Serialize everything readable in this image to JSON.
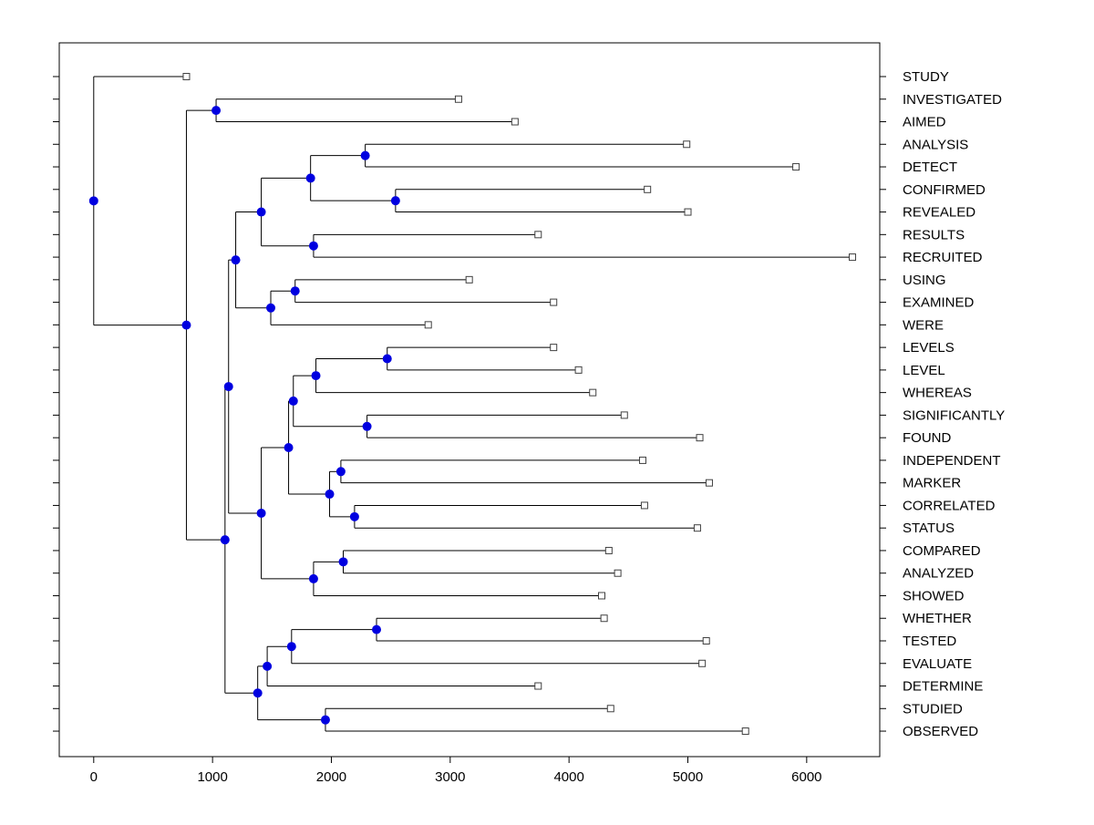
{
  "chart_data": {
    "type": "dendrogram",
    "orientation": "left-to-right",
    "title": "",
    "xlabel": "",
    "ylabel": "",
    "grid": false,
    "legend": null,
    "xlim": [
      -290,
      6615
    ],
    "x_tick_values": [
      0,
      1000,
      2000,
      3000,
      4000,
      5000,
      6000
    ],
    "x_tick_labels": [
      "0",
      "1000",
      "2000",
      "3000",
      "4000",
      "5000",
      "6000"
    ],
    "leaf_labels_side": "right",
    "leaves": [
      {
        "label": "STUDY",
        "x": 780
      },
      {
        "label": "INVESTIGATED",
        "x": 3070
      },
      {
        "label": "AIMED",
        "x": 3545
      },
      {
        "label": "ANALYSIS",
        "x": 4990
      },
      {
        "label": "DETECT",
        "x": 5910
      },
      {
        "label": "CONFIRMED",
        "x": 4660
      },
      {
        "label": "REVEALED",
        "x": 5000
      },
      {
        "label": "RESULTS",
        "x": 3740
      },
      {
        "label": "RECRUITED",
        "x": 6385
      },
      {
        "label": "USING",
        "x": 3160
      },
      {
        "label": "EXAMINED",
        "x": 3870
      },
      {
        "label": "WERE",
        "x": 2815
      },
      {
        "label": "LEVELS",
        "x": 3870
      },
      {
        "label": "LEVEL",
        "x": 4080
      },
      {
        "label": "WHEREAS",
        "x": 4200
      },
      {
        "label": "SIGNIFICANTLY",
        "x": 4465
      },
      {
        "label": "FOUND",
        "x": 5100
      },
      {
        "label": "INDEPENDENT",
        "x": 4620
      },
      {
        "label": "MARKER",
        "x": 5180
      },
      {
        "label": "CORRELATED",
        "x": 4635
      },
      {
        "label": "STATUS",
        "x": 5080
      },
      {
        "label": "COMPARED",
        "x": 4335
      },
      {
        "label": "ANALYZED",
        "x": 4410
      },
      {
        "label": "SHOWED",
        "x": 4275
      },
      {
        "label": "WHETHER",
        "x": 4295
      },
      {
        "label": "TESTED",
        "x": 5155
      },
      {
        "label": "EVALUATE",
        "x": 5120
      },
      {
        "label": "DETERMINE",
        "x": 3740
      },
      {
        "label": "STUDIED",
        "x": 4350
      },
      {
        "label": "OBSERVED",
        "x": 5485
      }
    ],
    "internal_nodes": [
      {
        "id": "n_ad",
        "x": 2285,
        "children": [
          "ANALYSIS",
          "DETECT"
        ]
      },
      {
        "id": "n_cr",
        "x": 2540,
        "children": [
          "CONFIRMED",
          "REVEALED"
        ]
      },
      {
        "id": "n_adcr",
        "x": 1825,
        "children": [
          "n_ad",
          "n_cr"
        ]
      },
      {
        "id": "n_rr",
        "x": 1850,
        "children": [
          "RESULTS",
          "RECRUITED"
        ]
      },
      {
        "id": "n_top",
        "x": 1410,
        "children": [
          "n_adcr",
          "n_rr"
        ]
      },
      {
        "id": "n_ue",
        "x": 1695,
        "children": [
          "USING",
          "EXAMINED"
        ]
      },
      {
        "id": "n_uew",
        "x": 1490,
        "children": [
          "n_ue",
          "WERE"
        ]
      },
      {
        "id": "n_upper",
        "x": 1195,
        "children": [
          "n_top",
          "n_uew"
        ]
      },
      {
        "id": "n_ia",
        "x": 1030,
        "children": [
          "INVESTIGATED",
          "AIMED"
        ]
      },
      {
        "id": "n_ll",
        "x": 2470,
        "children": [
          "LEVELS",
          "LEVEL"
        ]
      },
      {
        "id": "n_llw",
        "x": 1870,
        "children": [
          "n_ll",
          "WHEREAS"
        ]
      },
      {
        "id": "n_sf",
        "x": 2300,
        "children": [
          "SIGNIFICANTLY",
          "FOUND"
        ]
      },
      {
        "id": "n_lev",
        "x": 1680,
        "children": [
          "n_llw",
          "n_sf"
        ]
      },
      {
        "id": "n_im",
        "x": 2080,
        "children": [
          "INDEPENDENT",
          "MARKER"
        ]
      },
      {
        "id": "n_cs",
        "x": 2195,
        "children": [
          "CORRELATED",
          "STATUS"
        ]
      },
      {
        "id": "n_imcs",
        "x": 1985,
        "children": [
          "n_im",
          "n_cs"
        ]
      },
      {
        "id": "n_mid2",
        "x": 1640,
        "children": [
          "n_lev",
          "n_imcs"
        ]
      },
      {
        "id": "n_ca",
        "x": 2100,
        "children": [
          "COMPARED",
          "ANALYZED"
        ]
      },
      {
        "id": "n_cas",
        "x": 1850,
        "children": [
          "n_ca",
          "SHOWED"
        ]
      },
      {
        "id": "n_L1",
        "x": 1410,
        "children": [
          "n_mid2",
          "n_cas"
        ]
      },
      {
        "id": "n_wt",
        "x": 2380,
        "children": [
          "WHETHER",
          "TESTED"
        ]
      },
      {
        "id": "n_wte",
        "x": 1665,
        "children": [
          "n_wt",
          "EVALUATE"
        ]
      },
      {
        "id": "n_wted",
        "x": 1460,
        "children": [
          "n_wte",
          "DETERMINE"
        ]
      },
      {
        "id": "n_so",
        "x": 1950,
        "children": [
          "STUDIED",
          "OBSERVED"
        ]
      },
      {
        "id": "n_L2",
        "x": 1380,
        "children": [
          "n_wted",
          "n_so"
        ]
      },
      {
        "id": "n_M2",
        "x": 1135,
        "children": [
          "n_upper",
          "n_L1"
        ]
      },
      {
        "id": "n_M3",
        "x": 1105,
        "children": [
          "n_M2",
          "n_L2"
        ]
      },
      {
        "id": "n_A",
        "x": 780,
        "children": [
          "n_ia",
          "n_M3"
        ]
      },
      {
        "id": "root",
        "x": 0,
        "children": [
          "STUDY",
          "n_A"
        ]
      }
    ],
    "style": {
      "line_color": "#000000",
      "axis_color": "#000000",
      "branch_marker_color": "#0000e0",
      "branch_marker_shape": "filled-circle",
      "leaf_marker_fill": "#ffffff",
      "leaf_marker_edge_color": "#404040",
      "leaf_marker_shape": "open-square",
      "background": "#ffffff"
    }
  }
}
